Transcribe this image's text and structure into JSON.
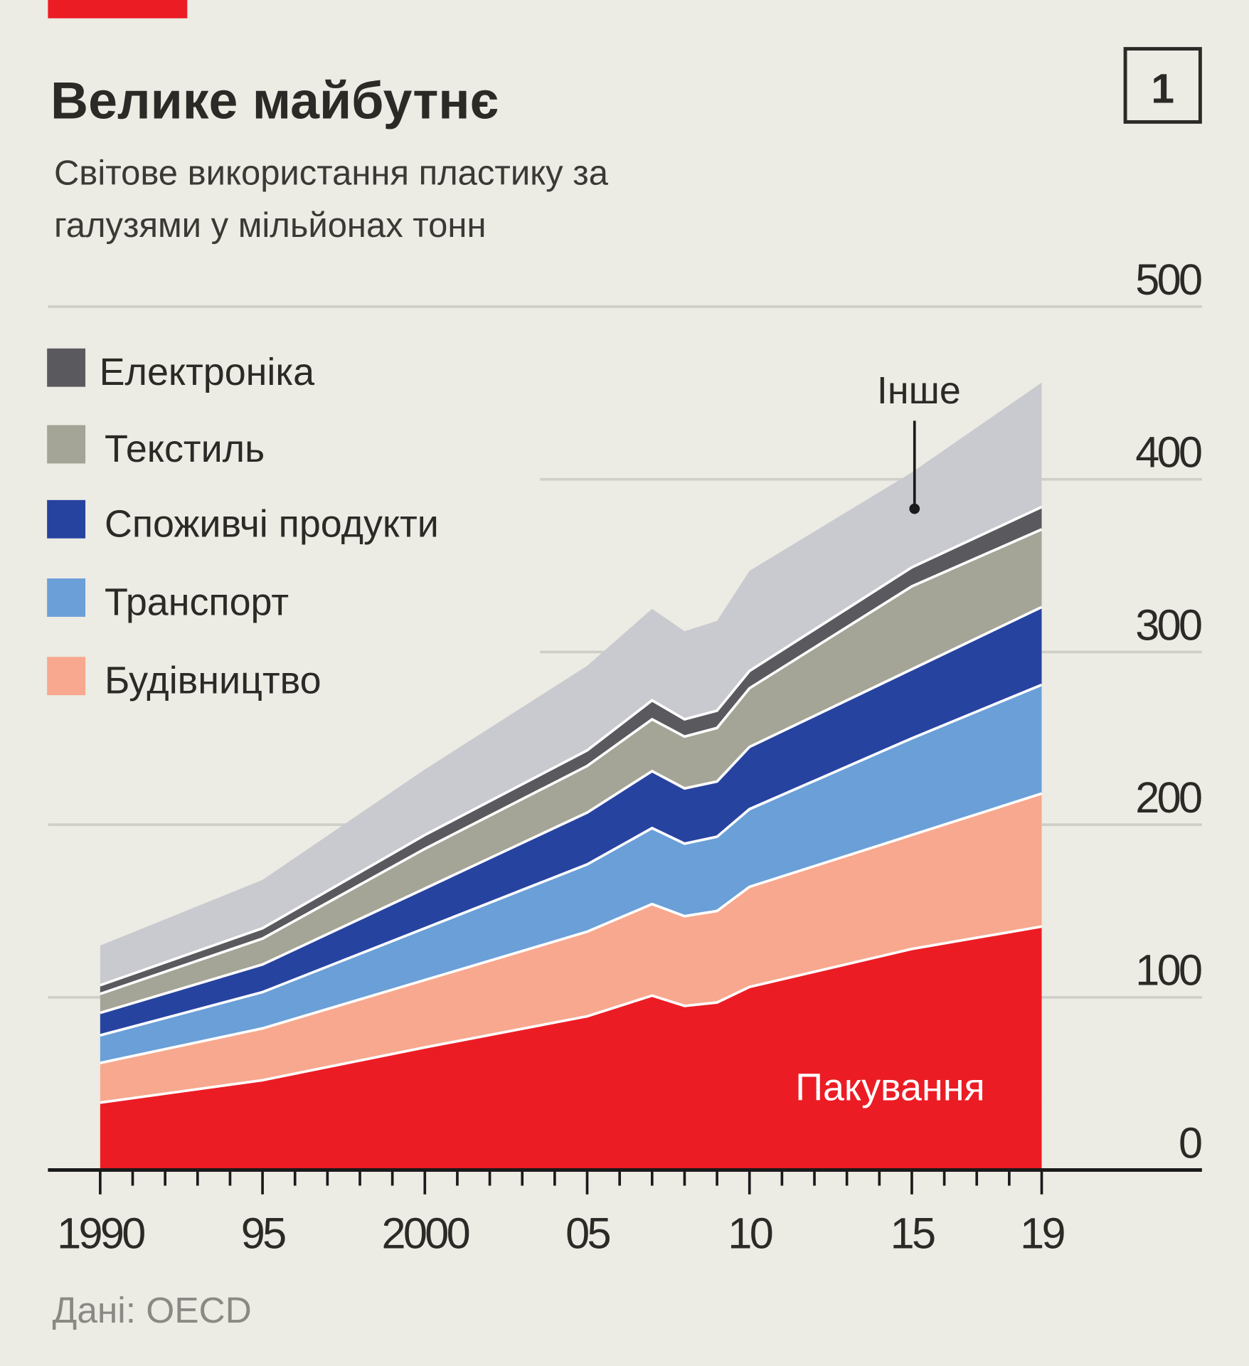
{
  "header": {
    "title": "Велике майбутнє",
    "subtitle_line1": "Світове використання пластику за",
    "subtitle_line2": "галузями у мільйонах тонн",
    "figure_number": "1"
  },
  "source": "Дані: OECD",
  "chart_data": {
    "type": "area",
    "stacked": true,
    "title": "Велике майбутнє",
    "subtitle": "Світове використання пластику за галузями у мільйонах тонн",
    "xlabel": "",
    "ylabel": "",
    "x": [
      1990,
      1995,
      2000,
      2005,
      2007,
      2008,
      2009,
      2010,
      2015,
      2019
    ],
    "xlim": [
      1990,
      2019
    ],
    "ylim": [
      0,
      500
    ],
    "yticks": [
      "0",
      "100",
      "200",
      "300",
      "400",
      "500"
    ],
    "xticks": [
      {
        "year": 1990,
        "label": "1990"
      },
      {
        "year": 1995,
        "label": "95"
      },
      {
        "year": 2000,
        "label": "2000"
      },
      {
        "year": 2005,
        "label": "05"
      },
      {
        "year": 2010,
        "label": "10"
      },
      {
        "year": 2015,
        "label": "15"
      },
      {
        "year": 2019,
        "label": "19"
      }
    ],
    "grid": true,
    "legend_position": "top-left",
    "series": [
      {
        "name": "Пакування",
        "color": "#ec1c24",
        "values": [
          39,
          52,
          71,
          89,
          101,
          95,
          97,
          106,
          128,
          141
        ]
      },
      {
        "name": "Будівництво",
        "color": "#f7a88e",
        "values": [
          23,
          30,
          39,
          49,
          53,
          52,
          53,
          58,
          66,
          77
        ]
      },
      {
        "name": "Транспорт",
        "color": "#6a9fd8",
        "values": [
          16,
          21,
          30,
          39,
          44,
          42,
          43,
          45,
          56,
          63
        ]
      },
      {
        "name": "Споживчі продукти",
        "color": "#2743a0",
        "values": [
          13,
          16,
          23,
          30,
          33,
          32,
          32,
          36,
          40,
          45
        ]
      },
      {
        "name": "Текстиль",
        "color": "#a4a497",
        "values": [
          11,
          15,
          23,
          27,
          30,
          30,
          31,
          34,
          48,
          45
        ]
      },
      {
        "name": "Електроніка",
        "color": "#5a5a5e",
        "values": [
          5,
          6,
          8,
          9,
          11,
          10,
          10,
          10,
          11,
          13
        ]
      },
      {
        "name": "Інше",
        "color": "#c9cacf",
        "values": [
          23,
          28,
          38,
          49,
          53,
          51,
          52,
          58,
          55,
          72
        ]
      }
    ],
    "legend": [
      "Електроніка",
      "Текстиль",
      "Споживчі продукти",
      "Транспорт",
      "Будівництво"
    ],
    "annotations": [
      "Інше",
      "Пакування"
    ]
  }
}
